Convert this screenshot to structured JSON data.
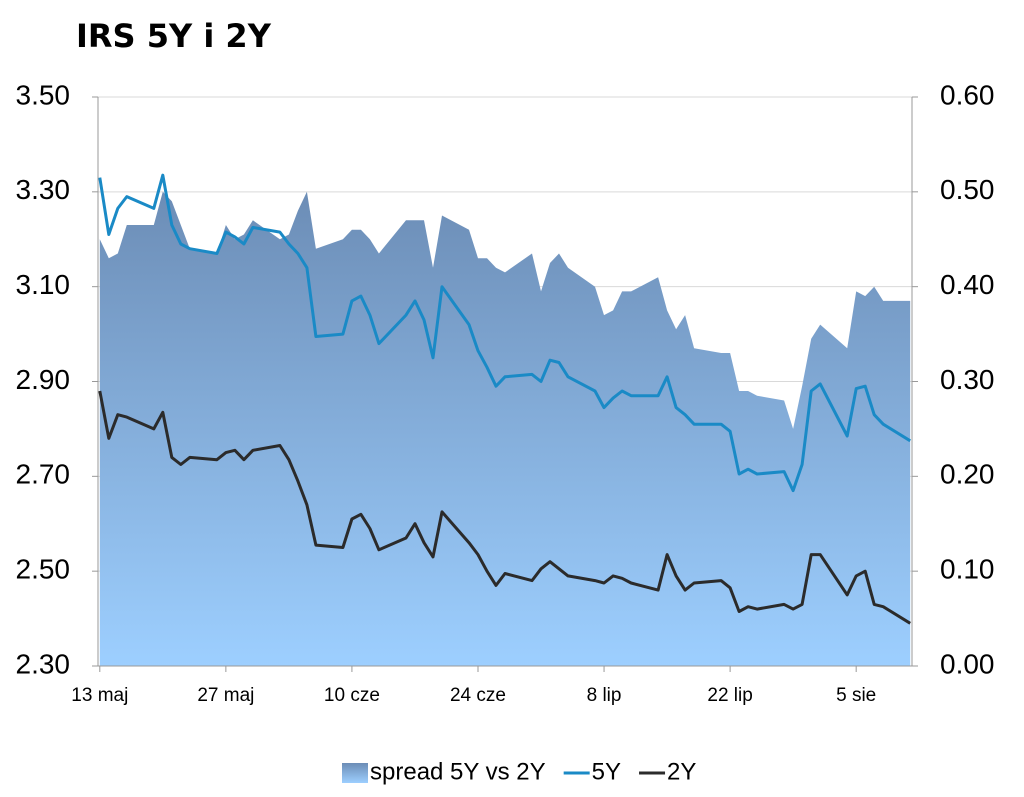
{
  "chart_data": {
    "type": "line",
    "title": "IRS 5Y i 2Y",
    "x": [
      0,
      1,
      2,
      3,
      6,
      7,
      8,
      9,
      10,
      13,
      14,
      15,
      16,
      17,
      20,
      21,
      22,
      23,
      24,
      27,
      28,
      29,
      30,
      31,
      34,
      35,
      36,
      37,
      38,
      41,
      42,
      43,
      44,
      45,
      48,
      49,
      50,
      51,
      52,
      55,
      56,
      57,
      58,
      59,
      62,
      63,
      64,
      65,
      66,
      69,
      70,
      71,
      72,
      73,
      76,
      77,
      78,
      79,
      80,
      83,
      84,
      85,
      86,
      87,
      90
    ],
    "series": [
      {
        "name": "spread 5Y vs 2Y",
        "type": "area",
        "axis": "y2",
        "color": "#7a9ec8",
        "values": [
          0.45,
          0.43,
          0.435,
          0.465,
          0.465,
          0.5,
          0.49,
          0.465,
          0.44,
          0.435,
          0.465,
          0.45,
          0.455,
          0.47,
          0.45,
          0.455,
          0.48,
          0.5,
          0.44,
          0.45,
          0.46,
          0.46,
          0.45,
          0.435,
          0.47,
          0.47,
          0.47,
          0.42,
          0.475,
          0.46,
          0.43,
          0.43,
          0.42,
          0.415,
          0.435,
          0.395,
          0.425,
          0.435,
          0.42,
          0.4,
          0.37,
          0.375,
          0.395,
          0.395,
          0.41,
          0.375,
          0.355,
          0.37,
          0.335,
          0.33,
          0.33,
          0.29,
          0.29,
          0.285,
          0.28,
          0.25,
          0.295,
          0.345,
          0.36,
          0.335,
          0.395,
          0.39,
          0.4,
          0.385,
          0.385
        ]
      },
      {
        "name": "5Y",
        "type": "line",
        "color": "#1a8ac6",
        "values": [
          3.33,
          3.21,
          3.265,
          3.29,
          3.265,
          3.335,
          3.23,
          3.19,
          3.18,
          3.17,
          3.215,
          3.205,
          3.19,
          3.225,
          3.215,
          3.19,
          3.17,
          3.14,
          2.995,
          3.0,
          3.07,
          3.08,
          3.04,
          2.98,
          3.04,
          3.07,
          3.03,
          2.95,
          3.1,
          3.02,
          2.965,
          2.93,
          2.89,
          2.91,
          2.915,
          2.9,
          2.945,
          2.94,
          2.91,
          2.88,
          2.845,
          2.865,
          2.88,
          2.87,
          2.87,
          2.91,
          2.845,
          2.83,
          2.81,
          2.81,
          2.795,
          2.705,
          2.715,
          2.705,
          2.71,
          2.67,
          2.725,
          2.88,
          2.895,
          2.785,
          2.885,
          2.89,
          2.83,
          2.81,
          2.775
        ]
      },
      {
        "name": "2Y",
        "type": "line",
        "color": "#2b2b2b",
        "values": [
          2.88,
          2.78,
          2.83,
          2.825,
          2.8,
          2.835,
          2.74,
          2.725,
          2.74,
          2.735,
          2.75,
          2.755,
          2.735,
          2.755,
          2.765,
          2.735,
          2.69,
          2.64,
          2.555,
          2.55,
          2.61,
          2.62,
          2.59,
          2.545,
          2.57,
          2.6,
          2.56,
          2.53,
          2.625,
          2.56,
          2.535,
          2.5,
          2.47,
          2.495,
          2.48,
          2.505,
          2.52,
          2.505,
          2.49,
          2.48,
          2.475,
          2.49,
          2.485,
          2.475,
          2.46,
          2.535,
          2.49,
          2.46,
          2.475,
          2.48,
          2.465,
          2.415,
          2.425,
          2.42,
          2.43,
          2.42,
          2.43,
          2.535,
          2.535,
          2.45,
          2.49,
          2.5,
          2.43,
          2.425,
          2.39
        ]
      }
    ],
    "xlim": [
      -0.2,
      90.2
    ],
    "xticks": [
      {
        "value": 0,
        "label": "13 maj"
      },
      {
        "value": 14,
        "label": "27 maj"
      },
      {
        "value": 28,
        "label": "10 cze"
      },
      {
        "value": 42,
        "label": "24 cze"
      },
      {
        "value": 56,
        "label": "8 lip"
      },
      {
        "value": 70,
        "label": "22 lip"
      },
      {
        "value": 84,
        "label": "5 sie"
      }
    ],
    "ylim": [
      2.3,
      3.5
    ],
    "yticks": [
      {
        "value": 2.3,
        "label": "2.30"
      },
      {
        "value": 2.5,
        "label": "2.50"
      },
      {
        "value": 2.7,
        "label": "2.70"
      },
      {
        "value": 2.9,
        "label": "2.90"
      },
      {
        "value": 3.1,
        "label": "3.10"
      },
      {
        "value": 3.3,
        "label": "3.30"
      },
      {
        "value": 3.5,
        "label": "3.50"
      }
    ],
    "y2lim": [
      0,
      0.6
    ],
    "y2ticks": [
      {
        "value": 0,
        "label": "0.00"
      },
      {
        "value": 0.1,
        "label": "0.10"
      },
      {
        "value": 0.2,
        "label": "0.20"
      },
      {
        "value": 0.3,
        "label": "0.30"
      },
      {
        "value": 0.4,
        "label": "0.40"
      },
      {
        "value": 0.5,
        "label": "0.50"
      },
      {
        "value": 0.6,
        "label": "0.60"
      }
    ],
    "grid": true,
    "legend": "bottom"
  }
}
